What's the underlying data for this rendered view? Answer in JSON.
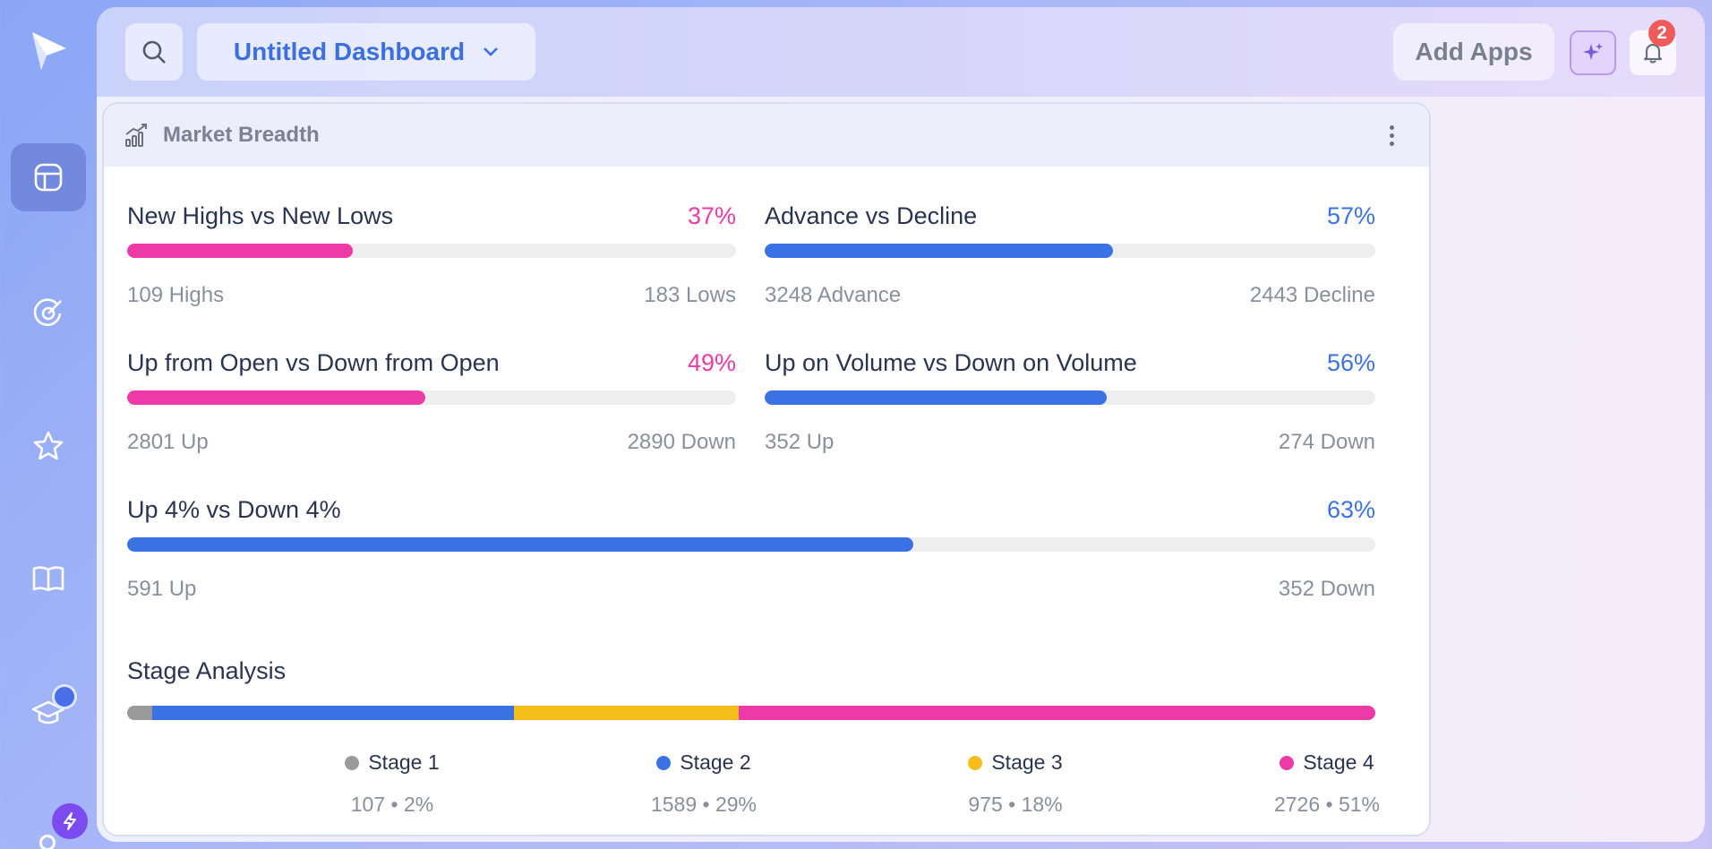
{
  "colors": {
    "pink": "#ec3aa6",
    "blue": "#3b72e3",
    "grey": "#9a9a9a",
    "yellow": "#f5be1b",
    "accent": "#3b6fe0"
  },
  "header": {
    "dashboard_title": "Untitled Dashboard",
    "add_apps_label": "Add Apps",
    "notification_count": "2"
  },
  "card": {
    "title": "Market Breadth",
    "metrics": [
      {
        "name": "New Highs vs New Lows",
        "percent_label": "37%",
        "percent": 37,
        "color": "#ec3aa6",
        "left": "109 Highs",
        "right": "183 Lows"
      },
      {
        "name": "Advance vs Decline",
        "percent_label": "57%",
        "percent": 57,
        "color": "#3b72e3",
        "left": "3248 Advance",
        "right": "2443 Decline"
      },
      {
        "name": "Up from Open vs Down from Open",
        "percent_label": "49%",
        "percent": 49,
        "color": "#ec3aa6",
        "left": "2801 Up",
        "right": "2890 Down"
      },
      {
        "name": "Up on Volume vs Down on Volume",
        "percent_label": "56%",
        "percent": 56,
        "color": "#3b72e3",
        "left": "352 Up",
        "right": "274 Down"
      },
      {
        "name": "Up 4% vs Down 4%",
        "percent_label": "63%",
        "percent": 63,
        "color": "#3b72e3",
        "left": "591 Up",
        "right": "352 Down"
      }
    ],
    "stage_analysis": {
      "title": "Stage Analysis",
      "stages": [
        {
          "label": "Stage 1",
          "value": "107 • 2%",
          "share": 2,
          "color": "#9a9a9a"
        },
        {
          "label": "Stage 2",
          "value": "1589 • 29%",
          "share": 29,
          "color": "#3b72e3"
        },
        {
          "label": "Stage 3",
          "value": "975 • 18%",
          "share": 18,
          "color": "#f5be1b"
        },
        {
          "label": "Stage 4",
          "value": "2726 • 51%",
          "share": 51,
          "color": "#ec3aa6"
        }
      ]
    }
  },
  "sidebar": {
    "icons": [
      "dashboard-icon",
      "target-icon",
      "star-icon",
      "book-icon",
      "graduation-cap-icon"
    ]
  }
}
